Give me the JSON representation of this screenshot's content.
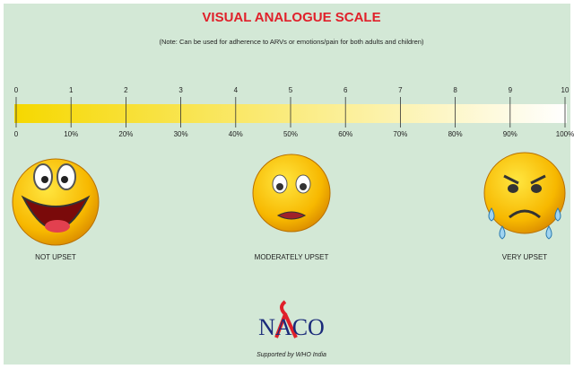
{
  "header": {
    "title": "VISUAL ANALOGUE SCALE",
    "note": "(Note: Can be used for adherence to ARVs or emotions/pain for both adults and children)"
  },
  "scale": {
    "top_labels": [
      "0",
      "1",
      "2",
      "3",
      "4",
      "5",
      "6",
      "7",
      "8",
      "9",
      "10"
    ],
    "bottom_labels": [
      "0",
      "10%",
      "20%",
      "30%",
      "40%",
      "50%",
      "60%",
      "70%",
      "80%",
      "90%",
      "100%"
    ]
  },
  "faces": [
    {
      "label": "NOT UPSET"
    },
    {
      "label": "MODERATELY UPSET"
    },
    {
      "label": "VERY UPSET"
    }
  ],
  "footer": {
    "logo": "NACO",
    "support": "Supported by WHO India"
  }
}
